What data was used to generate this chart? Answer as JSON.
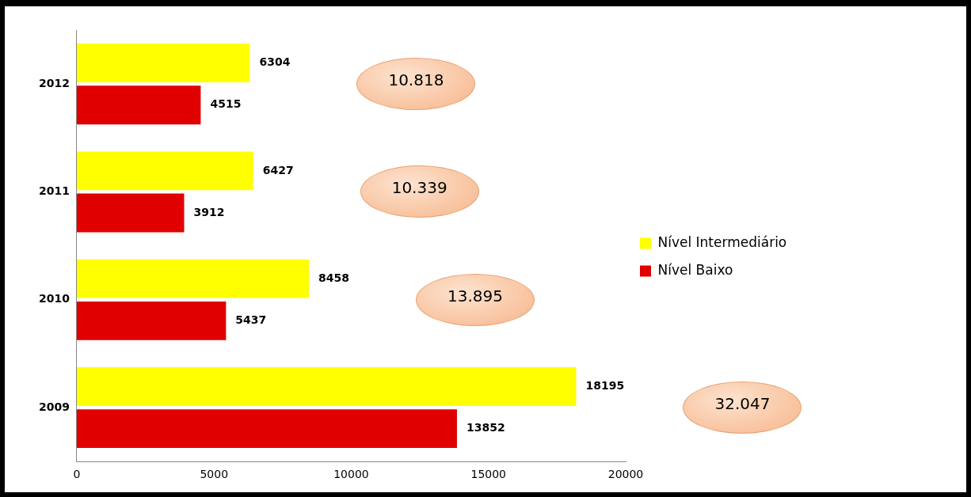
{
  "chart_data": {
    "type": "bar",
    "orientation": "horizontal",
    "categories": [
      "2012",
      "2011",
      "2010",
      "2009"
    ],
    "series": [
      {
        "name": "Nível Intermediário",
        "color": "#ffff00",
        "values": [
          6304,
          6427,
          8458,
          18195
        ]
      },
      {
        "name": "Nível Baixo",
        "color": "#e00000",
        "values": [
          4515,
          3912,
          5437,
          13852
        ]
      }
    ],
    "xlim": [
      0,
      20000
    ],
    "xticks": [
      0,
      5000,
      10000,
      15000,
      20000
    ],
    "data_labels": true,
    "annotations": [
      "10.818",
      "10.339",
      "13.895",
      "32.047"
    ],
    "grid": false,
    "legend": "right"
  }
}
